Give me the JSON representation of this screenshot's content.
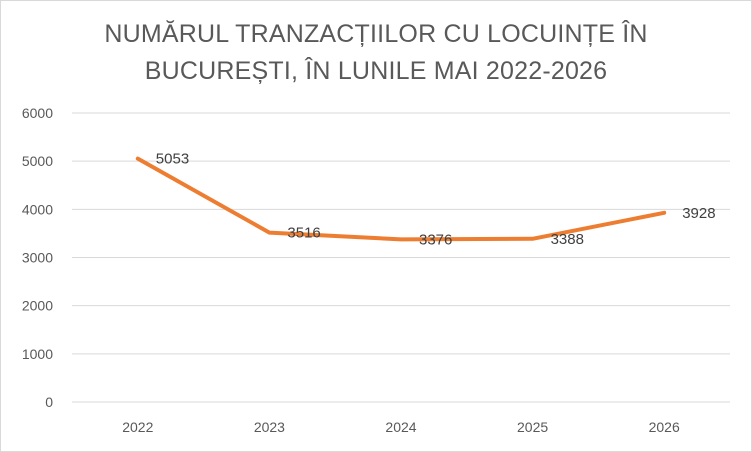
{
  "chart_data": {
    "type": "line",
    "title_lines": [
      "NUMĂRUL TRANZACȚIILOR CU LOCUINȚE ÎN",
      "BUCUREȘTI, ÎN LUNILE MAI 2022-2026"
    ],
    "categories": [
      "2022",
      "2023",
      "2024",
      "2025",
      "2026"
    ],
    "series": [
      {
        "values": [
          5053,
          3516,
          3376,
          3388,
          3928
        ]
      }
    ],
    "data_labels": [
      "5053",
      "3516",
      "3376",
      "3388",
      "3928"
    ],
    "y_ticks": [
      "0",
      "1000",
      "2000",
      "3000",
      "4000",
      "5000",
      "6000"
    ],
    "ylim": [
      0,
      6000
    ],
    "grid": true,
    "legend": "none",
    "colors": {
      "line": "#ED7D31",
      "grid": "#d9d9d9",
      "text": "#595959"
    }
  }
}
